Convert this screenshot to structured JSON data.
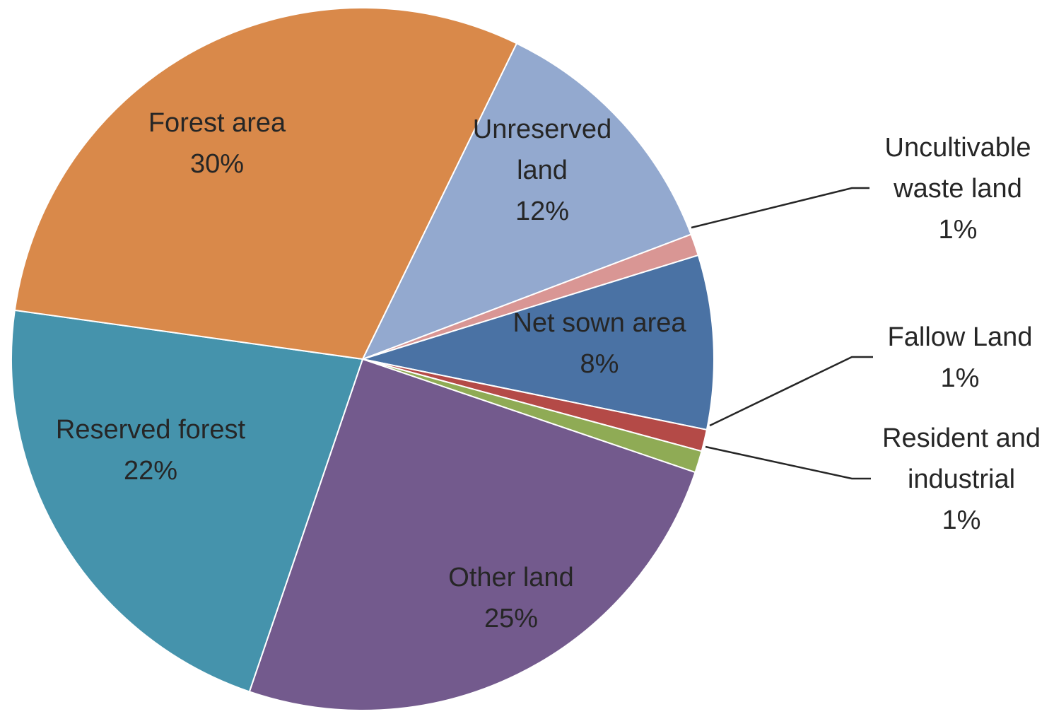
{
  "chart_data": {
    "type": "pie",
    "title": "",
    "slices": [
      {
        "name": "Unreserved land",
        "value": 12,
        "label_lines": [
          "Unreserved",
          "land",
          "12%"
        ],
        "color": "#93A9CF",
        "leader": false
      },
      {
        "name": "Uncultivable waste land",
        "value": 1,
        "label_lines": [
          "Uncultivable",
          "waste land",
          "1%"
        ],
        "color": "#D99694",
        "leader": true
      },
      {
        "name": "Net sown area",
        "value": 8,
        "label_lines": [
          "Net sown area",
          "8%"
        ],
        "color": "#4A72A4",
        "leader": false
      },
      {
        "name": "Fallow Land",
        "value": 1,
        "label_lines": [
          "Fallow Land",
          "1%"
        ],
        "color": "#B44A47",
        "leader": true
      },
      {
        "name": "Resident and industrial",
        "value": 1,
        "label_lines": [
          "Resident and",
          "industrial",
          "1%"
        ],
        "color": "#8FAB55",
        "leader": true
      },
      {
        "name": "Other land",
        "value": 25,
        "label_lines": [
          "Other land",
          "25%"
        ],
        "color": "#735A8D",
        "leader": false
      },
      {
        "name": "Reserved forest",
        "value": 22,
        "label_lines": [
          "Reserved forest",
          "22%"
        ],
        "color": "#4593AC",
        "leader": false
      },
      {
        "name": "Forest area",
        "value": 30,
        "label_lines": [
          "Forest area",
          "30%"
        ],
        "color": "#D9894A",
        "leader": false
      }
    ],
    "start_angle_deg": -64,
    "direction": "clockwise",
    "legend": "none",
    "data_labels": "category name and percentage"
  }
}
